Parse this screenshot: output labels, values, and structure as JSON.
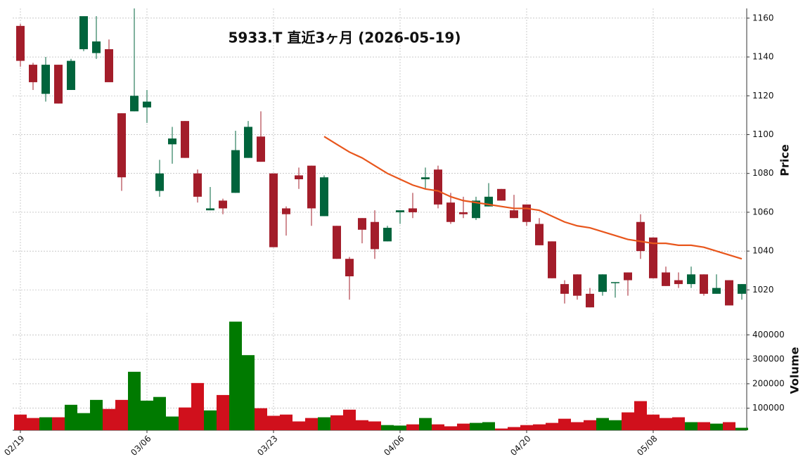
{
  "chart_data": {
    "type": "candlestick",
    "title": "5933.T  直近3ヶ月  (2026-05-19)",
    "ylabel": "Price",
    "categories": [
      "02/19",
      null,
      null,
      null,
      null,
      null,
      null,
      null,
      null,
      null,
      "03/06",
      null,
      null,
      null,
      null,
      null,
      null,
      null,
      null,
      null,
      "03/23",
      null,
      null,
      null,
      null,
      null,
      null,
      null,
      null,
      null,
      "04/06",
      null,
      null,
      null,
      null,
      null,
      null,
      null,
      null,
      null,
      "04/20",
      null,
      null,
      null,
      null,
      null,
      null,
      null,
      null,
      null,
      "05/08",
      null,
      null,
      null,
      null,
      null,
      null,
      null
    ],
    "open": [
      1156,
      1136,
      1121,
      1136,
      1123,
      1144,
      1142,
      1144,
      1111,
      1112,
      1114,
      1071,
      1095,
      1107,
      1080,
      1061,
      1066,
      1070,
      1088,
      1099,
      1080,
      1062,
      1079,
      1084,
      1058,
      1053,
      1036,
      1057,
      1055,
      1045,
      1060,
      1062,
      1077,
      1082,
      1065,
      1060,
      1057,
      1063,
      1072,
      1061,
      1064,
      1054,
      1045,
      1023,
      1028,
      1018,
      1019,
      1024,
      1029,
      1055,
      1047,
      1029,
      1025,
      1023,
      1028,
      1018,
      1025,
      1018
    ],
    "high": [
      1157,
      1137,
      1140,
      1136,
      1139,
      1161,
      1161,
      1149,
      1111,
      1165,
      1123,
      1087,
      1104,
      1107,
      1082,
      1073,
      1067,
      1102,
      1107,
      1112,
      1080,
      1063,
      1083,
      1084,
      1079,
      1053,
      1037,
      1057,
      1061,
      1053,
      1061,
      1070,
      1083,
      1084,
      1070,
      1068,
      1068,
      1075,
      1072,
      1069,
      1064,
      1057,
      1045,
      1025,
      1028,
      1021,
      1028,
      1024,
      1029,
      1059,
      1047,
      1032,
      1029,
      1032,
      1028,
      1028,
      1025,
      1023
    ],
    "low": [
      1135,
      1123,
      1117,
      1116,
      1123,
      1143,
      1139,
      1127,
      1071,
      1112,
      1106,
      1068,
      1085,
      1088,
      1065,
      1061,
      1059,
      1070,
      1088,
      1086,
      1042,
      1048,
      1072,
      1053,
      1058,
      1036,
      1015,
      1044,
      1036,
      1045,
      1054,
      1057,
      1072,
      1062,
      1054,
      1057,
      1056,
      1063,
      1066,
      1057,
      1053,
      1043,
      1026,
      1013,
      1015,
      1011,
      1017,
      1016,
      1017,
      1036,
      1026,
      1022,
      1021,
      1021,
      1017,
      1018,
      1012,
      1015
    ],
    "close": [
      1138,
      1127,
      1136,
      1116,
      1138,
      1161,
      1148,
      1127,
      1078,
      1120,
      1117,
      1080,
      1098,
      1088,
      1068,
      1062,
      1062,
      1092,
      1104,
      1086,
      1042,
      1059,
      1077,
      1062,
      1078,
      1036,
      1027,
      1051,
      1041,
      1052,
      1061,
      1060,
      1078,
      1064,
      1055,
      1059,
      1066,
      1068,
      1066,
      1057,
      1055,
      1043,
      1026,
      1018,
      1017,
      1011,
      1028,
      1024,
      1025,
      1040,
      1026,
      1022,
      1023,
      1028,
      1018,
      1021,
      1012,
      1023
    ],
    "up_color": "#00643c",
    "down_color": "#a31d2a",
    "ylim": [
      1010,
      1165
    ],
    "yticks": [
      1020,
      1040,
      1060,
      1080,
      1100,
      1120,
      1140,
      1160
    ],
    "moving_average": {
      "color": "#e8561c",
      "values": [
        null,
        null,
        null,
        null,
        null,
        null,
        null,
        null,
        null,
        null,
        null,
        null,
        null,
        null,
        null,
        null,
        null,
        null,
        null,
        null,
        null,
        null,
        null,
        null,
        1099,
        1095,
        1091,
        1088,
        1084,
        1080,
        1077,
        1074,
        1072,
        1071,
        1068,
        1066,
        1065,
        1064,
        1063,
        1062,
        1062,
        1061,
        1058,
        1055,
        1053,
        1052,
        1050,
        1048,
        1046,
        1045,
        1044,
        1044,
        1043,
        1043,
        1042,
        1040,
        1038,
        1036
      ]
    },
    "volume": {
      "label": "Volume",
      "up_color": "#007a00",
      "down_color": "#d0101c",
      "values": [
        74000,
        60000,
        63000,
        63000,
        114000,
        80000,
        134000,
        97000,
        134000,
        249000,
        131000,
        146000,
        66000,
        103000,
        203000,
        91000,
        154000,
        454000,
        317000,
        100000,
        69000,
        74000,
        46000,
        60000,
        63000,
        71000,
        94000,
        51000,
        46000,
        31000,
        29000,
        34000,
        60000,
        34000,
        26000,
        37000,
        40000,
        43000,
        17000,
        23000,
        31000,
        34000,
        40000,
        57000,
        43000,
        51000,
        60000,
        51000,
        83000,
        129000,
        74000,
        60000,
        63000,
        43000,
        43000,
        37000,
        43000,
        20000
      ],
      "ylim": [
        10000,
        490000
      ],
      "yticks": [
        100000,
        200000,
        300000,
        400000
      ]
    },
    "grid": true
  }
}
